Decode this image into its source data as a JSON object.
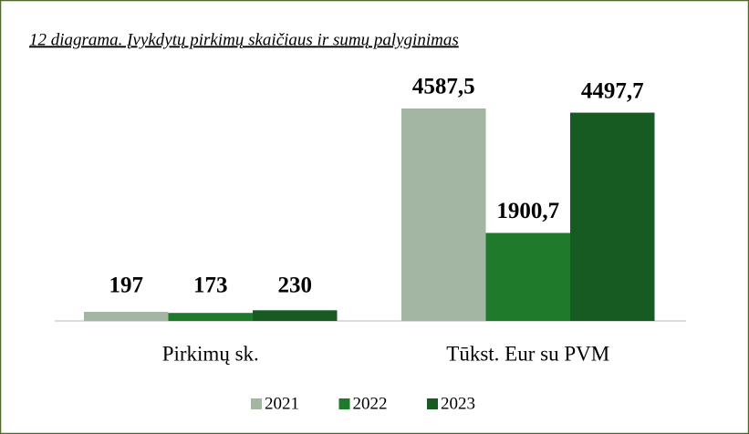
{
  "chart_data": {
    "type": "bar",
    "title": "12 diagrama. Įvykdytų pirkimų skaičiaus ir sumų palyginimas",
    "categories": [
      "Pirkimų sk.",
      "Tūkst. Eur su PVM"
    ],
    "series": [
      {
        "name": "2021",
        "color": "#a3b5a3",
        "values": [
          197,
          4587.5
        ],
        "value_labels": [
          "197",
          "4587,5"
        ]
      },
      {
        "name": "2022",
        "color": "#1f7a2b",
        "values": [
          173,
          1900.7
        ],
        "value_labels": [
          "173",
          "1900,7"
        ]
      },
      {
        "name": "2023",
        "color": "#175a22",
        "values": [
          230,
          4497.7
        ],
        "value_labels": [
          "230",
          "4497,7"
        ]
      }
    ],
    "legend": "bottom"
  }
}
